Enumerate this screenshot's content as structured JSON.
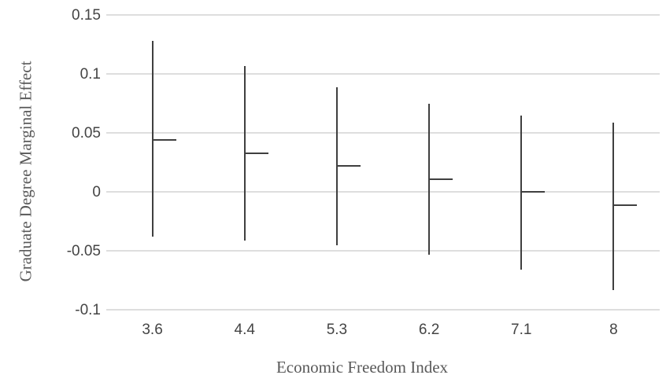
{
  "chart_data": {
    "type": "scatter",
    "subtype": "error-bar-interval-plot",
    "title": "",
    "xlabel": "Economic Freedom Index",
    "ylabel": "Graduate Degree Marginal Effect",
    "categories": [
      "3.6",
      "4.4",
      "5.3",
      "6.2",
      "7.1",
      "8"
    ],
    "series": [
      {
        "name": "point-estimate",
        "values": [
          0.044,
          0.033,
          0.022,
          0.011,
          0.0,
          -0.011
        ]
      },
      {
        "name": "ci-lower",
        "values": [
          -0.038,
          -0.041,
          -0.045,
          -0.053,
          -0.066,
          -0.083
        ]
      },
      {
        "name": "ci-upper",
        "values": [
          0.128,
          0.107,
          0.089,
          0.075,
          0.065,
          0.059
        ]
      }
    ],
    "y_ticks": [
      0.15,
      0.1,
      0.05,
      0,
      -0.05,
      -0.1
    ],
    "y_tick_labels": [
      "0.15",
      "0.1",
      "0.05",
      "0",
      "-0.05",
      "-0.1"
    ],
    "ylim": [
      -0.1,
      0.15
    ],
    "grid": "horizontal-only",
    "legend_position": "none",
    "colors": {
      "bar": "#3f3f3f",
      "gridline": "#dedede",
      "tick_label": "#444444",
      "axis_title": "#595959",
      "background": "#ffffff"
    }
  }
}
